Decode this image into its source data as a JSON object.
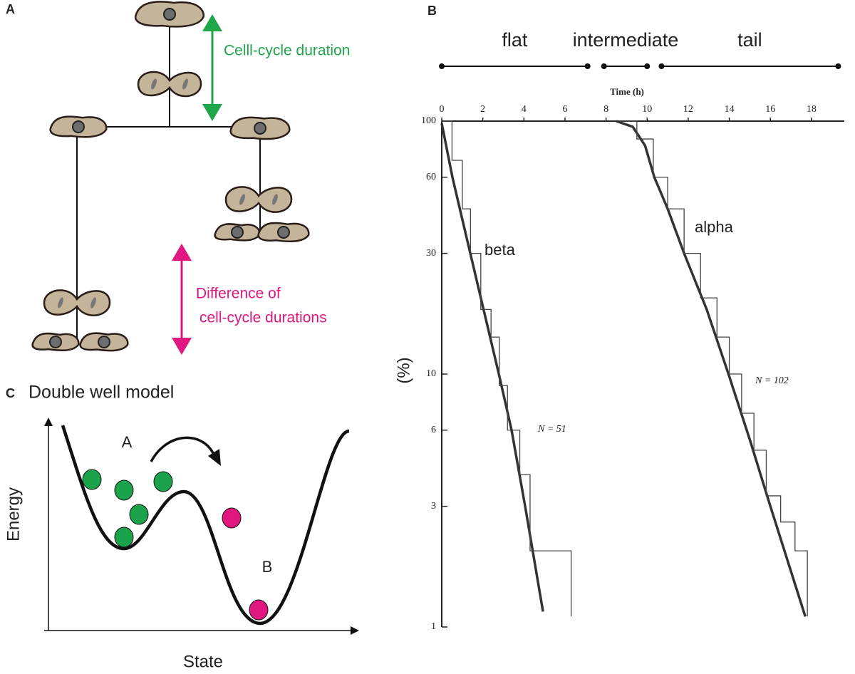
{
  "panel_a": {
    "label": "A",
    "arrow_top_text": "Celll-cycle duration",
    "arrow_bottom_text": [
      "Difference of",
      "cell-cycle durations"
    ]
  },
  "chart_data": {
    "type": "line",
    "label": "B",
    "xlabel": "Time (h)",
    "ylabel": "(%)",
    "log_y": true,
    "xlim": [
      0,
      19.6
    ],
    "ylim": [
      1,
      100
    ],
    "xticks": [
      0,
      2,
      4,
      6,
      8,
      10,
      12,
      14,
      16,
      18
    ],
    "yticks": [
      1,
      3,
      6,
      10,
      30,
      60,
      100
    ],
    "phases": [
      {
        "name": "flat",
        "start": 0,
        "end": 7.1
      },
      {
        "name": "intermediate",
        "start": 7.9,
        "end": 10.0
      },
      {
        "name": "tail",
        "start": 10.7,
        "end": 19.3
      }
    ],
    "series": [
      {
        "name": "beta",
        "color": "#333333",
        "style": "fit",
        "x": [
          0,
          0.52,
          1.39,
          2.78,
          3.4,
          4.06,
          4.93
        ],
        "values": [
          98,
          60,
          30,
          10,
          6,
          3,
          1.15
        ]
      },
      {
        "name": "alpha",
        "color": "#333333",
        "style": "fit",
        "x": [
          8.5,
          9.3,
          9.9,
          10.35,
          11.0,
          11.8,
          12.9,
          13.96,
          15.0,
          16.0,
          17.7
        ],
        "values": [
          100,
          95,
          80,
          60,
          45,
          30,
          18,
          10,
          5.5,
          3,
          1.1
        ]
      },
      {
        "color": "#444444",
        "style": "step",
        "x": [
          0,
          0.5,
          1.0,
          1.4,
          1.9,
          2.4,
          2.8,
          3.2,
          3.8,
          4.3,
          6.3
        ],
        "values": [
          100,
          70,
          45,
          30,
          18,
          14,
          9,
          6,
          4,
          2,
          1.1
        ]
      },
      {
        "color": "#444444",
        "style": "step",
        "x": [
          8.6,
          9.5,
          10.3,
          11.0,
          11.8,
          12.6,
          13.4,
          14.0,
          14.6,
          15.2,
          15.8,
          16.5,
          17.2,
          17.8
        ],
        "values": [
          100,
          85,
          60,
          45,
          30,
          20,
          14,
          10,
          7,
          5,
          3.3,
          2.6,
          2,
          1.1
        ]
      }
    ],
    "annotations": [
      "N = 51",
      "N = 102"
    ]
  },
  "panel_c": {
    "label": "C",
    "title": "Double well model",
    "well_a": "A",
    "well_b": "B",
    "ylabel": "Energy",
    "xlabel": "State"
  }
}
